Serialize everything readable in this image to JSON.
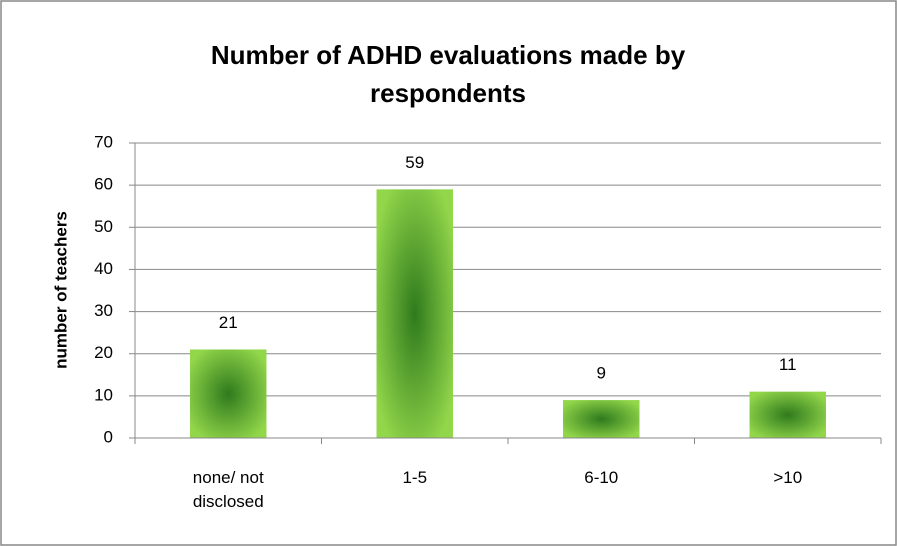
{
  "chart_data": {
    "type": "bar",
    "title": "Number of ADHD evaluations made by respondents",
    "y_axis_label": "number of teachers",
    "categories": [
      "none/ not disclosed",
      "1-5",
      "6-10",
      ">10"
    ],
    "values": [
      21,
      59,
      9,
      11
    ],
    "color": "#92d050",
    "ylim": [
      0,
      70
    ],
    "yticks": [
      0,
      10,
      20,
      30,
      40,
      50,
      60,
      70
    ],
    "grid": true
  }
}
